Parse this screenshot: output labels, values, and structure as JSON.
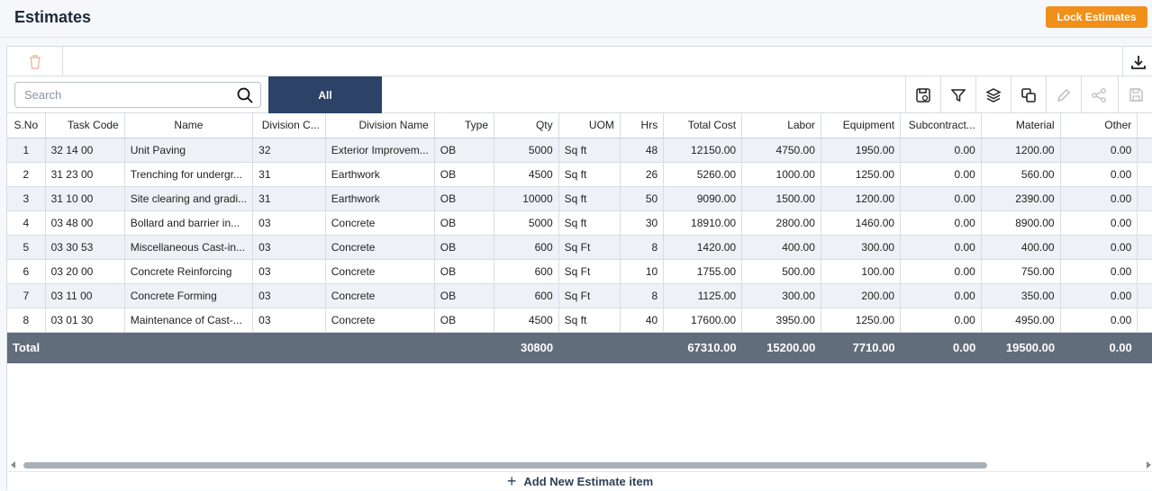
{
  "header": {
    "title": "Estimates",
    "lock_label": "Lock Estimates"
  },
  "search": {
    "placeholder": "Search"
  },
  "tabs": [
    {
      "label": "All",
      "active": true
    }
  ],
  "toolbar_icons": [
    "save-view-icon",
    "filter-icon",
    "layers-icon",
    "copy-icon",
    "edit-icon",
    "share-icon",
    "save-icon"
  ],
  "columns": [
    "S.No",
    "Task Code",
    "Name",
    "Division C...",
    "Division Name",
    "Type",
    "Qty",
    "UOM",
    "Hrs",
    "Total Cost",
    "Labor",
    "Equipment",
    "Subcontract...",
    "Material",
    "Other"
  ],
  "rows": [
    [
      "1",
      "32 14 00",
      "Unit Paving",
      "32",
      "Exterior Improvem...",
      "OB",
      "5000",
      "Sq ft",
      "48",
      "12150.00",
      "4750.00",
      "1950.00",
      "0.00",
      "1200.00",
      "0.00"
    ],
    [
      "2",
      "31 23 00",
      "Trenching for undergr...",
      "31",
      "Earthwork",
      "OB",
      "4500",
      "Sq ft",
      "26",
      "5260.00",
      "1000.00",
      "1250.00",
      "0.00",
      "560.00",
      "0.00"
    ],
    [
      "3",
      "31 10 00",
      "Site clearing and gradi...",
      "31",
      "Earthwork",
      "OB",
      "10000",
      "Sq ft",
      "50",
      "9090.00",
      "1500.00",
      "1200.00",
      "0.00",
      "2390.00",
      "0.00"
    ],
    [
      "4",
      "03 48 00",
      "Bollard and barrier in...",
      "03",
      "Concrete",
      "OB",
      "5000",
      "Sq ft",
      "30",
      "18910.00",
      "2800.00",
      "1460.00",
      "0.00",
      "8900.00",
      "0.00"
    ],
    [
      "5",
      "03 30 53",
      "Miscellaneous Cast-in...",
      "03",
      "Concrete",
      "OB",
      "600",
      "Sq Ft",
      "8",
      "1420.00",
      "400.00",
      "300.00",
      "0.00",
      "400.00",
      "0.00"
    ],
    [
      "6",
      "03 20 00",
      "Concrete Reinforcing",
      "03",
      "Concrete",
      "OB",
      "600",
      "Sq Ft",
      "10",
      "1755.00",
      "500.00",
      "100.00",
      "0.00",
      "750.00",
      "0.00"
    ],
    [
      "7",
      "03 11 00",
      "Concrete Forming",
      "03",
      "Concrete",
      "OB",
      "600",
      "Sq Ft",
      "8",
      "1125.00",
      "300.00",
      "200.00",
      "0.00",
      "350.00",
      "0.00"
    ],
    [
      "8",
      "03 01 30",
      "Maintenance of Cast-...",
      "03",
      "Concrete",
      "OB",
      "4500",
      "Sq ft",
      "40",
      "17600.00",
      "3950.00",
      "1250.00",
      "0.00",
      "4950.00",
      "0.00"
    ]
  ],
  "totals": {
    "label": "Total",
    "qty": "30800",
    "total_cost": "67310.00",
    "labor": "15200.00",
    "equipment": "7710.00",
    "subcontract": "0.00",
    "material": "19500.00",
    "other": "0.00"
  },
  "footer": {
    "add_label": "Add New Estimate item"
  },
  "colors": {
    "accent": "#f0901a",
    "tab_active": "#2c4266",
    "total_row": "#626d7b"
  }
}
